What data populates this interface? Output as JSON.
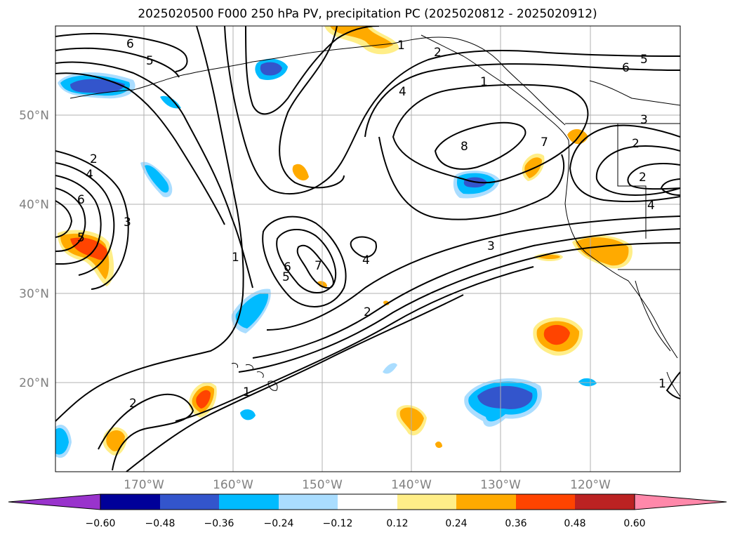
{
  "title": "2025020500 F000 250 hPa PV, precipitation PC (2025020812 - 2025020912)",
  "map": {
    "lat_labels": [
      "50°N",
      "40°N",
      "30°N",
      "20°N"
    ],
    "lon_labels": [
      "170°W",
      "160°W",
      "150°W",
      "140°W",
      "130°W",
      "120°W"
    ],
    "contour_labels": [
      "6",
      "5",
      "2",
      "4",
      "6",
      "5",
      "3",
      "1",
      "4",
      "8",
      "7",
      "2",
      "6",
      "5",
      "3",
      "2",
      "4",
      "1",
      "6",
      "7",
      "5",
      "4",
      "3",
      "2",
      "1",
      "2",
      "1",
      "2",
      "1"
    ]
  },
  "colorbar": {
    "ticks": [
      "−0.60",
      "−0.48",
      "−0.36",
      "−0.24",
      "−0.12",
      "0.12",
      "0.24",
      "0.36",
      "0.48",
      "0.60"
    ],
    "colors": [
      "#9933cc",
      "#000099",
      "#3355cc",
      "#00bbff",
      "#aaddff",
      "#ffffff",
      "#ffee88",
      "#ffaa00",
      "#ff4400",
      "#bb2222",
      "#ff88aa"
    ]
  },
  "colors": {
    "neg_strong": "#3355cc",
    "neg_mid": "#00bbff",
    "neg_light": "#aaddff",
    "pos_light": "#ffee88",
    "pos_mid": "#ffaa00",
    "pos_strong": "#ff4400"
  }
}
